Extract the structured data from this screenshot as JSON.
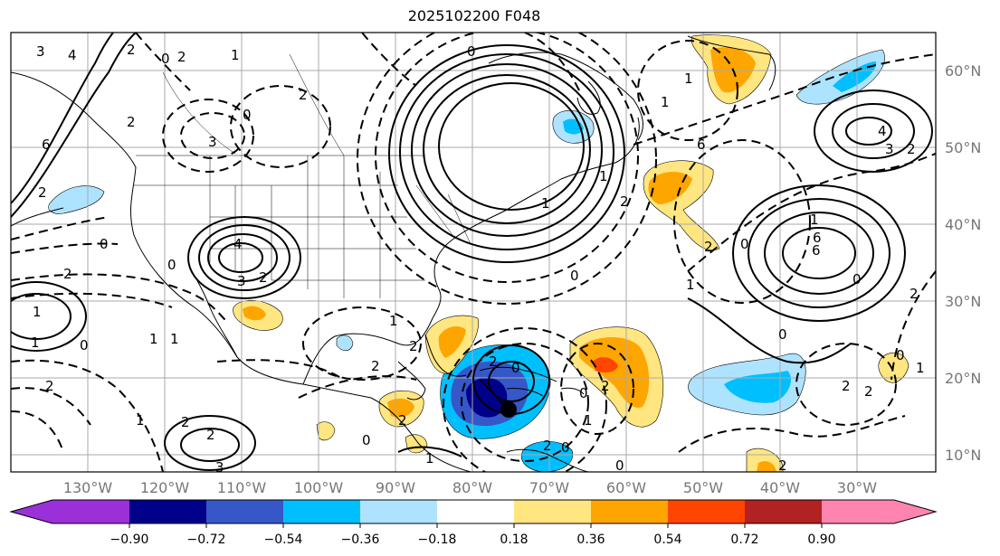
{
  "title": "2025102200 F048",
  "lat_labels": [
    "60°N",
    "50°N",
    "40°N",
    "30°N",
    "20°N",
    "10°N"
  ],
  "lon_labels": [
    "130°W",
    "120°W",
    "110°W",
    "100°W",
    "90°W",
    "80°W",
    "70°W",
    "60°W",
    "50°W",
    "40°W",
    "30°W"
  ],
  "colorbar": {
    "colors": [
      "#9b30d9",
      "#00008b",
      "#3657c8",
      "#00bfff",
      "#aee3ff",
      "#ffffff",
      "#ffe680",
      "#ffa500",
      "#ff4500",
      "#b22222",
      "#ff85b0"
    ],
    "ticks": [
      "−0.90",
      "−0.72",
      "−0.54",
      "−0.36",
      "−0.18",
      "0.18",
      "0.36",
      "0.54",
      "0.72",
      "0.90"
    ]
  },
  "contour_labels": [
    "3",
    "4",
    "2",
    "0",
    "2",
    "1",
    "6",
    "2",
    "0",
    "2",
    "3",
    "0",
    "2",
    "4",
    "3",
    "2",
    "0",
    "2",
    "1",
    "1",
    "0",
    "2",
    "1",
    "2",
    "2",
    "3",
    "6",
    "6",
    "3",
    "2",
    "4",
    "0",
    "1",
    "0",
    "2",
    "0",
    "2",
    "1",
    "0",
    "2",
    "0",
    "1",
    "2",
    "2",
    "2",
    "1",
    "0",
    "6",
    "0",
    "1",
    "0",
    "2",
    "1",
    "1",
    "1",
    "2",
    "0",
    "2",
    "0",
    "2",
    "2",
    "1",
    "1",
    "0",
    "2",
    "1",
    "1"
  ],
  "storm_marker": "storm-center"
}
